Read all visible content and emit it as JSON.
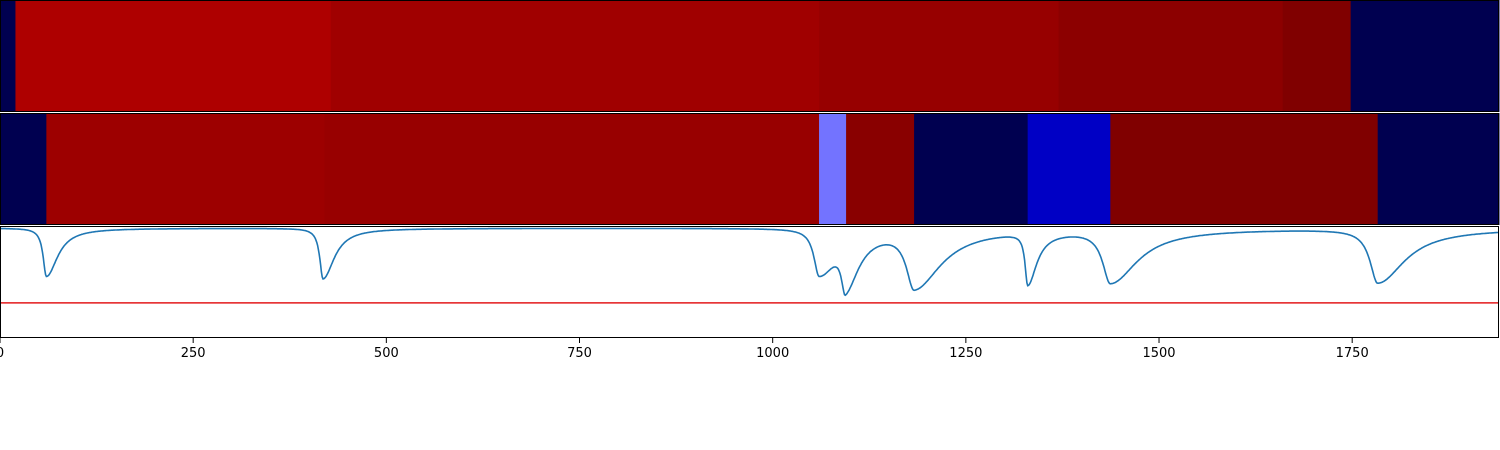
{
  "chart_data": [
    {
      "type": "heatmap",
      "xlim": [
        0,
        1940
      ],
      "segments": [
        {
          "x0": 0,
          "x1": 20,
          "color": "#000050"
        },
        {
          "x0": 20,
          "x1": 428,
          "color": "#ae0000"
        },
        {
          "x0": 428,
          "x1": 1060,
          "color": "#a00000"
        },
        {
          "x0": 1060,
          "x1": 1370,
          "color": "#970000"
        },
        {
          "x0": 1370,
          "x1": 1660,
          "color": "#8c0000"
        },
        {
          "x0": 1660,
          "x1": 1748,
          "color": "#800000"
        },
        {
          "x0": 1748,
          "x1": 1940,
          "color": "#000050"
        }
      ]
    },
    {
      "type": "heatmap",
      "xlim": [
        0,
        1940
      ],
      "segments": [
        {
          "x0": 0,
          "x1": 60,
          "color": "#000050"
        },
        {
          "x0": 60,
          "x1": 420,
          "color": "#9d0000"
        },
        {
          "x0": 420,
          "x1": 1060,
          "color": "#980000"
        },
        {
          "x0": 1060,
          "x1": 1095,
          "color": "#7373ff"
        },
        {
          "x0": 1095,
          "x1": 1183,
          "color": "#890000"
        },
        {
          "x0": 1183,
          "x1": 1330,
          "color": "#000050"
        },
        {
          "x0": 1330,
          "x1": 1437,
          "color": "#0000c5"
        },
        {
          "x0": 1437,
          "x1": 1783,
          "color": "#800000"
        },
        {
          "x0": 1783,
          "x1": 1940,
          "color": "#000050"
        }
      ]
    },
    {
      "type": "line",
      "xlim": [
        0,
        1940
      ],
      "ylim": [
        -1.0,
        0.02
      ],
      "threshold": -0.68,
      "colors": {
        "series": "#1f77b4",
        "threshold": "#e31a1c"
      },
      "dips": [
        {
          "x": 60,
          "depth": -0.44,
          "w": 5
        },
        {
          "x": 418,
          "depth": -0.46,
          "w": 5
        },
        {
          "x": 1060,
          "depth": -0.42,
          "w": 8
        },
        {
          "x": 1094,
          "depth": -0.43,
          "w": 6
        },
        {
          "x": 1183,
          "depth": -0.52,
          "w": 12
        },
        {
          "x": 1330,
          "depth": -0.47,
          "w": 4
        },
        {
          "x": 1437,
          "depth": -0.48,
          "w": 12
        },
        {
          "x": 1783,
          "depth": -0.49,
          "w": 12
        }
      ],
      "xticks": [
        0,
        250,
        500,
        750,
        1000,
        1250,
        1500,
        1750
      ]
    }
  ]
}
